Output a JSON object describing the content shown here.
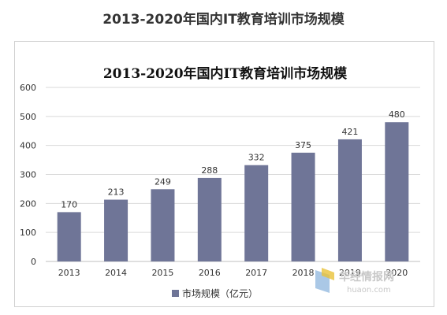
{
  "page_title": "2013-2020年国内IT教育培训市场规模",
  "watermark": {
    "name": "华经情报网",
    "url": "huaon.com"
  },
  "chart_data": {
    "type": "bar",
    "title": "2013-2020年国内IT教育培训市场规模",
    "categories": [
      "2013",
      "2014",
      "2015",
      "2016",
      "2017",
      "2018",
      "2019",
      "2020"
    ],
    "series": [
      {
        "name": "市场规模（亿元）",
        "values": [
          170,
          213,
          249,
          288,
          332,
          375,
          421,
          480
        ]
      }
    ],
    "ylim": [
      0,
      600
    ],
    "yticks": [
      0,
      100,
      200,
      300,
      400,
      500,
      600
    ],
    "grid": true,
    "legend": "bottom",
    "colors": {
      "bar": "#6f7597",
      "grid": "#d9d9d9"
    }
  }
}
